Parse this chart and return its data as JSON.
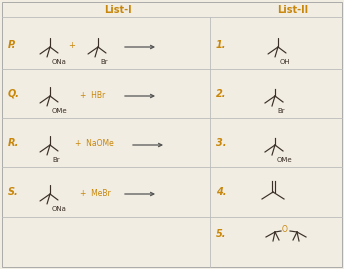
{
  "bg_color": "#f2ede3",
  "header_color": "#c8860a",
  "text_color": "#3a3028",
  "mol_color": "#3a3028",
  "arrow_color": "#555555",
  "sep_color": "#bbbbbb",
  "list1_header": "List-I",
  "list2_header": "List-II",
  "figsize": [
    3.44,
    2.69
  ],
  "dpi": 100,
  "rows": [
    "P.",
    "Q.",
    "R.",
    "S."
  ],
  "numbers": [
    "1.",
    "2.",
    "3.",
    "4.",
    "5."
  ]
}
